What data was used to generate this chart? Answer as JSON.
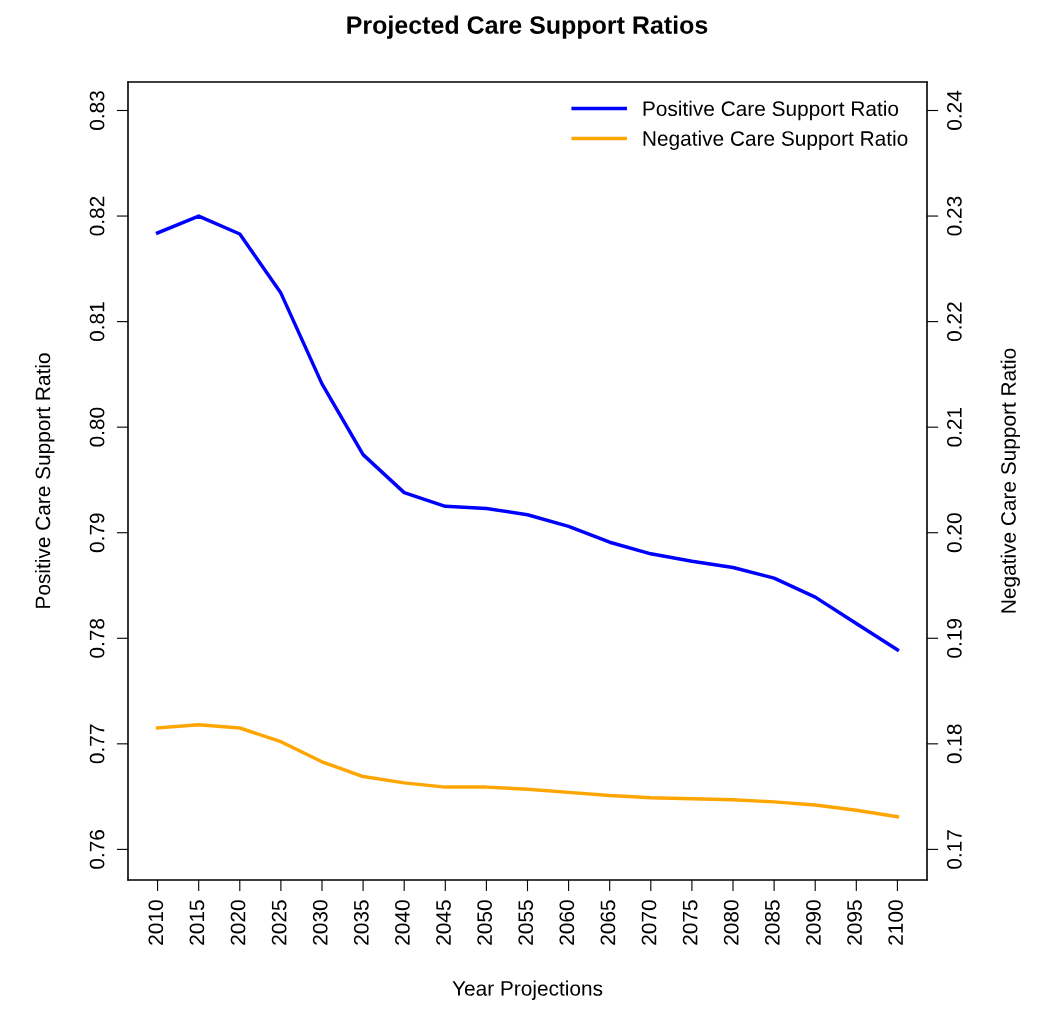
{
  "chart_data": {
    "type": "line",
    "title": "Projected Care Support Ratios",
    "xlabel": "Year Projections",
    "ylabel": "Positive Care Support Ratio",
    "y2label": "Negative Care Support Ratio",
    "x": [
      2010,
      2015,
      2020,
      2025,
      2030,
      2035,
      2040,
      2045,
      2050,
      2055,
      2060,
      2065,
      2070,
      2075,
      2080,
      2085,
      2090,
      2095,
      2100
    ],
    "series": [
      {
        "name": "Positive Care Support Ratio",
        "color": "#0000ff",
        "values": [
          0.8184,
          0.82,
          0.8183,
          0.8127,
          0.8041,
          0.7974,
          0.7938,
          0.7925,
          0.7923,
          0.7917,
          0.7906,
          0.7891,
          0.788,
          0.7873,
          0.7867,
          0.7857,
          0.7839,
          0.7814,
          0.7789
        ]
      },
      {
        "name": "Negative Care Support Ratio",
        "color": "#ffa500",
        "axis": "y2",
        "values": [
          0.1815,
          0.1818,
          0.1815,
          0.1802,
          0.1783,
          0.1769,
          0.1763,
          0.1759,
          0.1759,
          0.1757,
          0.1754,
          0.1751,
          0.1749,
          0.1748,
          0.1747,
          0.1745,
          0.1742,
          0.1737,
          0.1731
        ]
      }
    ],
    "xlim": [
      2006.4,
      2103.6
    ],
    "xticks": [
      2010,
      2015,
      2020,
      2025,
      2030,
      2035,
      2040,
      2045,
      2050,
      2055,
      2060,
      2065,
      2070,
      2075,
      2080,
      2085,
      2090,
      2095,
      2100
    ],
    "ylim": [
      0.7571,
      0.8327
    ],
    "yticks": [
      0.76,
      0.77,
      0.78,
      0.79,
      {
        "value": 0.8,
        "label": "0.80"
      },
      0.81,
      0.82,
      0.83
    ],
    "y2lim": [
      0.1671,
      0.2427
    ],
    "y2ticks": [
      0.17,
      0.18,
      0.19,
      {
        "value": 0.2,
        "label": "0.20"
      },
      0.21,
      0.22,
      0.23,
      0.24
    ],
    "legend": "top right",
    "grid": false,
    "line_style": "solid",
    "marker": "none"
  }
}
